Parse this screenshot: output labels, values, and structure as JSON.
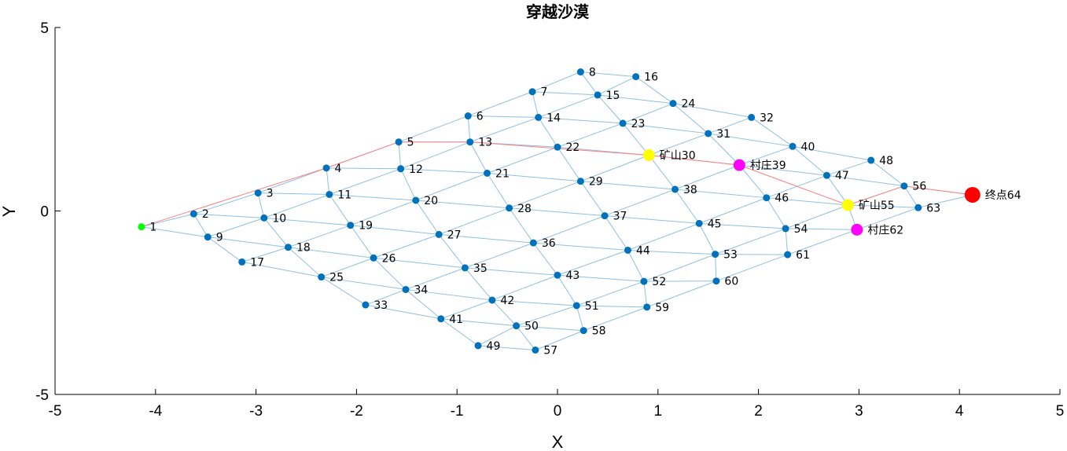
{
  "chart_data": {
    "type": "scatter",
    "title": "穿越沙漠",
    "xlabel": "X",
    "ylabel": "Y",
    "xlim": [
      -5,
      5
    ],
    "ylim": [
      -5,
      5
    ],
    "xticks": [
      "-5",
      "-4",
      "-3",
      "-2",
      "-1",
      "0",
      "1",
      "2",
      "3",
      "4",
      "5"
    ],
    "yticks": [
      "5",
      "0",
      "-5"
    ],
    "grid": false,
    "colors": {
      "node": "#0072BD",
      "edge": "#8fc0e3",
      "path": "#ff8080",
      "start": "#00ff00",
      "mine": "#ffff00",
      "village": "#ff00ff",
      "end": "#ff0000"
    },
    "nodes": [
      {
        "id": 1,
        "x": -4.14,
        "y": -0.43,
        "label": "1",
        "kind": "start"
      },
      {
        "id": 2,
        "x": -3.62,
        "y": -0.08,
        "label": "2"
      },
      {
        "id": 3,
        "x": -2.98,
        "y": 0.49,
        "label": "3"
      },
      {
        "id": 4,
        "x": -2.3,
        "y": 1.17,
        "label": "4"
      },
      {
        "id": 5,
        "x": -1.58,
        "y": 1.88,
        "label": "5"
      },
      {
        "id": 6,
        "x": -0.89,
        "y": 2.59,
        "label": "6"
      },
      {
        "id": 7,
        "x": -0.25,
        "y": 3.25,
        "label": "7"
      },
      {
        "id": 8,
        "x": 0.23,
        "y": 3.79,
        "label": "8"
      },
      {
        "id": 9,
        "x": -3.48,
        "y": -0.71,
        "label": "9"
      },
      {
        "id": 10,
        "x": -2.92,
        "y": -0.19,
        "label": "10"
      },
      {
        "id": 11,
        "x": -2.27,
        "y": 0.45,
        "label": "11"
      },
      {
        "id": 12,
        "x": -1.56,
        "y": 1.15,
        "label": "12"
      },
      {
        "id": 13,
        "x": -0.87,
        "y": 1.88,
        "label": "13"
      },
      {
        "id": 14,
        "x": -0.19,
        "y": 2.55,
        "label": "14"
      },
      {
        "id": 15,
        "x": 0.4,
        "y": 3.16,
        "label": "15"
      },
      {
        "id": 16,
        "x": 0.78,
        "y": 3.66,
        "label": "16"
      },
      {
        "id": 17,
        "x": -3.14,
        "y": -1.39,
        "label": "17"
      },
      {
        "id": 18,
        "x": -2.68,
        "y": -0.99,
        "label": "18"
      },
      {
        "id": 19,
        "x": -2.06,
        "y": -0.39,
        "label": "19"
      },
      {
        "id": 20,
        "x": -1.41,
        "y": 0.29,
        "label": "20"
      },
      {
        "id": 21,
        "x": -0.7,
        "y": 1.03,
        "label": "21"
      },
      {
        "id": 22,
        "x": 0.0,
        "y": 1.74,
        "label": "22"
      },
      {
        "id": 23,
        "x": 0.65,
        "y": 2.39,
        "label": "23"
      },
      {
        "id": 24,
        "x": 1.15,
        "y": 2.93,
        "label": "24"
      },
      {
        "id": 25,
        "x": -2.35,
        "y": -1.8,
        "label": "25"
      },
      {
        "id": 26,
        "x": -1.83,
        "y": -1.28,
        "label": "26"
      },
      {
        "id": 27,
        "x": -1.18,
        "y": -0.64,
        "label": "27"
      },
      {
        "id": 28,
        "x": -0.48,
        "y": 0.08,
        "label": "28"
      },
      {
        "id": 29,
        "x": 0.23,
        "y": 0.81,
        "label": "29"
      },
      {
        "id": 30,
        "x": 0.91,
        "y": 1.52,
        "label": "矿山30",
        "kind": "mine"
      },
      {
        "id": 31,
        "x": 1.5,
        "y": 2.11,
        "label": "31"
      },
      {
        "id": 32,
        "x": 1.93,
        "y": 2.55,
        "label": "32"
      },
      {
        "id": 33,
        "x": -1.91,
        "y": -2.56,
        "label": "33"
      },
      {
        "id": 34,
        "x": -1.51,
        "y": -2.14,
        "label": "34"
      },
      {
        "id": 35,
        "x": -0.92,
        "y": -1.55,
        "label": "35"
      },
      {
        "id": 36,
        "x": -0.24,
        "y": -0.87,
        "label": "36"
      },
      {
        "id": 37,
        "x": 0.47,
        "y": -0.13,
        "label": "37"
      },
      {
        "id": 38,
        "x": 1.17,
        "y": 0.59,
        "label": "38"
      },
      {
        "id": 39,
        "x": 1.81,
        "y": 1.25,
        "label": "村庄39",
        "kind": "village"
      },
      {
        "id": 40,
        "x": 2.34,
        "y": 1.76,
        "label": "40"
      },
      {
        "id": 41,
        "x": -1.16,
        "y": -2.94,
        "label": "41"
      },
      {
        "id": 42,
        "x": -0.65,
        "y": -2.43,
        "label": "42"
      },
      {
        "id": 43,
        "x": 0.0,
        "y": -1.75,
        "label": "43"
      },
      {
        "id": 44,
        "x": 0.7,
        "y": -1.07,
        "label": "44"
      },
      {
        "id": 45,
        "x": 1.41,
        "y": -0.34,
        "label": "45"
      },
      {
        "id": 46,
        "x": 2.08,
        "y": 0.36,
        "label": "46"
      },
      {
        "id": 47,
        "x": 2.68,
        "y": 0.97,
        "label": "47"
      },
      {
        "id": 48,
        "x": 3.12,
        "y": 1.38,
        "label": "48"
      },
      {
        "id": 49,
        "x": -0.79,
        "y": -3.67,
        "label": "49"
      },
      {
        "id": 50,
        "x": -0.41,
        "y": -3.13,
        "label": "50"
      },
      {
        "id": 51,
        "x": 0.19,
        "y": -2.58,
        "label": "51"
      },
      {
        "id": 52,
        "x": 0.86,
        "y": -1.92,
        "label": "52"
      },
      {
        "id": 53,
        "x": 1.57,
        "y": -1.18,
        "label": "53"
      },
      {
        "id": 54,
        "x": 2.27,
        "y": -0.48,
        "label": "54"
      },
      {
        "id": 55,
        "x": 2.89,
        "y": 0.16,
        "label": "矿山55",
        "kind": "mine"
      },
      {
        "id": 56,
        "x": 3.45,
        "y": 0.68,
        "label": "56"
      },
      {
        "id": 57,
        "x": -0.22,
        "y": -3.79,
        "label": "57"
      },
      {
        "id": 58,
        "x": 0.26,
        "y": -3.26,
        "label": "58"
      },
      {
        "id": 59,
        "x": 0.89,
        "y": -2.62,
        "label": "59"
      },
      {
        "id": 60,
        "x": 1.58,
        "y": -1.91,
        "label": "60"
      },
      {
        "id": 61,
        "x": 2.29,
        "y": -1.19,
        "label": "61"
      },
      {
        "id": 62,
        "x": 2.98,
        "y": -0.51,
        "label": "村庄62",
        "kind": "village"
      },
      {
        "id": 63,
        "x": 3.59,
        "y": 0.09,
        "label": "63"
      },
      {
        "id": 64,
        "x": 4.13,
        "y": 0.44,
        "label": "终点64",
        "kind": "end"
      }
    ],
    "edges": [
      [
        1,
        2
      ],
      [
        1,
        9
      ],
      [
        2,
        3
      ],
      [
        2,
        9
      ],
      [
        2,
        10
      ],
      [
        3,
        4
      ],
      [
        3,
        10
      ],
      [
        3,
        11
      ],
      [
        4,
        5
      ],
      [
        4,
        11
      ],
      [
        4,
        12
      ],
      [
        5,
        6
      ],
      [
        5,
        12
      ],
      [
        5,
        13
      ],
      [
        6,
        7
      ],
      [
        6,
        13
      ],
      [
        6,
        14
      ],
      [
        7,
        8
      ],
      [
        7,
        14
      ],
      [
        7,
        15
      ],
      [
        8,
        15
      ],
      [
        8,
        16
      ],
      [
        9,
        10
      ],
      [
        9,
        17
      ],
      [
        9,
        18
      ],
      [
        10,
        11
      ],
      [
        10,
        18
      ],
      [
        10,
        19
      ],
      [
        11,
        12
      ],
      [
        11,
        19
      ],
      [
        11,
        20
      ],
      [
        12,
        13
      ],
      [
        12,
        20
      ],
      [
        12,
        21
      ],
      [
        13,
        14
      ],
      [
        13,
        21
      ],
      [
        13,
        22
      ],
      [
        14,
        15
      ],
      [
        14,
        22
      ],
      [
        14,
        23
      ],
      [
        15,
        16
      ],
      [
        15,
        23
      ],
      [
        15,
        24
      ],
      [
        16,
        24
      ],
      [
        17,
        18
      ],
      [
        17,
        25
      ],
      [
        18,
        19
      ],
      [
        18,
        25
      ],
      [
        18,
        26
      ],
      [
        19,
        20
      ],
      [
        19,
        26
      ],
      [
        19,
        27
      ],
      [
        20,
        21
      ],
      [
        20,
        27
      ],
      [
        20,
        28
      ],
      [
        21,
        22
      ],
      [
        21,
        28
      ],
      [
        21,
        29
      ],
      [
        22,
        23
      ],
      [
        22,
        29
      ],
      [
        22,
        30
      ],
      [
        23,
        24
      ],
      [
        23,
        30
      ],
      [
        23,
        31
      ],
      [
        24,
        31
      ],
      [
        24,
        32
      ],
      [
        25,
        26
      ],
      [
        25,
        33
      ],
      [
        25,
        34
      ],
      [
        26,
        27
      ],
      [
        26,
        34
      ],
      [
        26,
        35
      ],
      [
        27,
        28
      ],
      [
        27,
        35
      ],
      [
        27,
        36
      ],
      [
        28,
        29
      ],
      [
        28,
        36
      ],
      [
        28,
        37
      ],
      [
        29,
        30
      ],
      [
        29,
        37
      ],
      [
        29,
        38
      ],
      [
        30,
        31
      ],
      [
        30,
        38
      ],
      [
        30,
        39
      ],
      [
        31,
        32
      ],
      [
        31,
        39
      ],
      [
        31,
        40
      ],
      [
        32,
        40
      ],
      [
        33,
        34
      ],
      [
        33,
        41
      ],
      [
        34,
        35
      ],
      [
        34,
        41
      ],
      [
        34,
        42
      ],
      [
        35,
        36
      ],
      [
        35,
        42
      ],
      [
        35,
        43
      ],
      [
        36,
        37
      ],
      [
        36,
        43
      ],
      [
        36,
        44
      ],
      [
        37,
        38
      ],
      [
        37,
        44
      ],
      [
        37,
        45
      ],
      [
        38,
        39
      ],
      [
        38,
        45
      ],
      [
        38,
        46
      ],
      [
        39,
        40
      ],
      [
        39,
        46
      ],
      [
        39,
        47
      ],
      [
        40,
        47
      ],
      [
        40,
        48
      ],
      [
        41,
        42
      ],
      [
        41,
        49
      ],
      [
        41,
        50
      ],
      [
        42,
        43
      ],
      [
        42,
        50
      ],
      [
        42,
        51
      ],
      [
        43,
        44
      ],
      [
        43,
        51
      ],
      [
        43,
        52
      ],
      [
        44,
        45
      ],
      [
        44,
        52
      ],
      [
        44,
        53
      ],
      [
        45,
        46
      ],
      [
        45,
        53
      ],
      [
        45,
        54
      ],
      [
        46,
        47
      ],
      [
        46,
        54
      ],
      [
        46,
        55
      ],
      [
        47,
        48
      ],
      [
        47,
        55
      ],
      [
        47,
        56
      ],
      [
        48,
        56
      ],
      [
        49,
        50
      ],
      [
        49,
        57
      ],
      [
        50,
        51
      ],
      [
        50,
        57
      ],
      [
        50,
        58
      ],
      [
        51,
        52
      ],
      [
        51,
        58
      ],
      [
        51,
        59
      ],
      [
        52,
        53
      ],
      [
        52,
        59
      ],
      [
        52,
        60
      ],
      [
        53,
        54
      ],
      [
        53,
        60
      ],
      [
        53,
        61
      ],
      [
        54,
        55
      ],
      [
        54,
        61
      ],
      [
        54,
        62
      ],
      [
        55,
        56
      ],
      [
        55,
        62
      ],
      [
        55,
        63
      ],
      [
        56,
        63
      ],
      [
        56,
        64
      ],
      [
        57,
        58
      ],
      [
        58,
        59
      ],
      [
        59,
        60
      ],
      [
        60,
        61
      ],
      [
        61,
        62
      ],
      [
        62,
        63
      ],
      [
        63,
        64
      ]
    ],
    "path": [
      1,
      4,
      5,
      13,
      30,
      39,
      55,
      56,
      64
    ]
  }
}
